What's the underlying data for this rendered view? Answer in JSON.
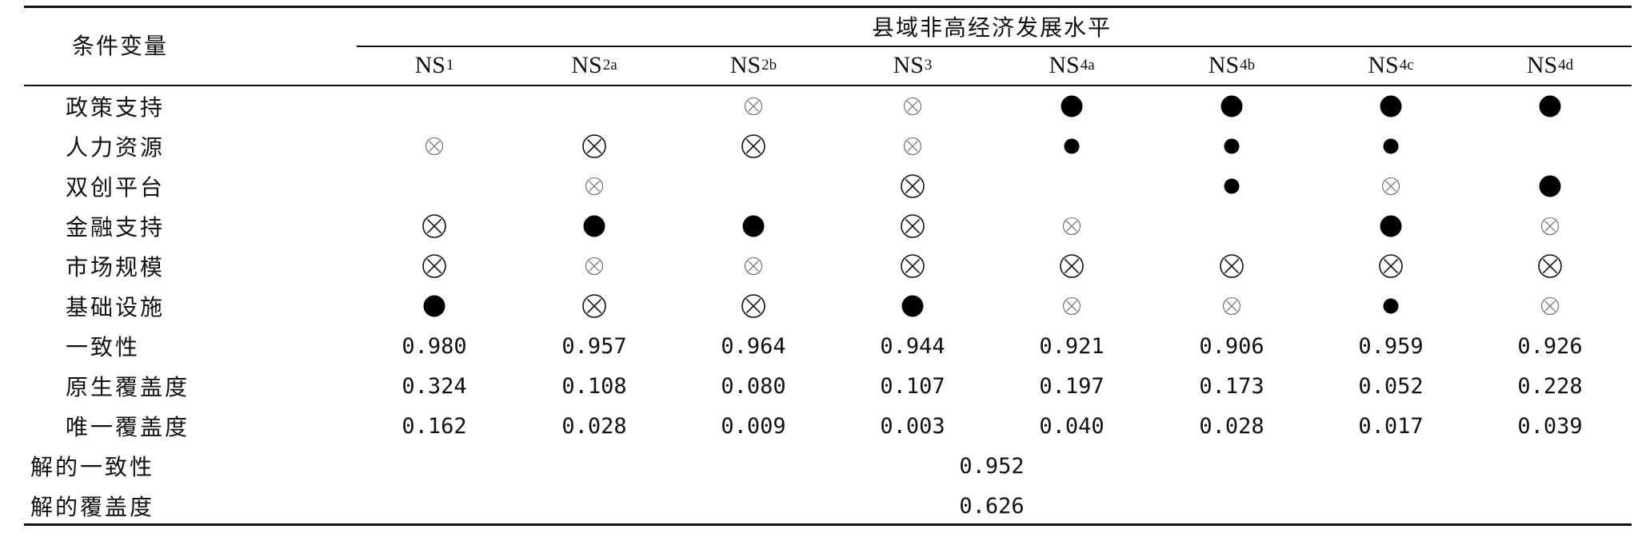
{
  "table": {
    "corner_header": "条件变量",
    "group_header": "县域非高经济发展水平",
    "columns": [
      {
        "base": "NS",
        "sub": "1"
      },
      {
        "base": "NS",
        "sub": "2a"
      },
      {
        "base": "NS",
        "sub": "2b"
      },
      {
        "base": "NS",
        "sub": "3"
      },
      {
        "base": "NS",
        "sub": "4a"
      },
      {
        "base": "NS",
        "sub": "4b"
      },
      {
        "base": "NS",
        "sub": "4c"
      },
      {
        "base": "NS",
        "sub": "4d"
      }
    ],
    "legend_symbols": {
      "big_filled": "core condition present",
      "small_filled": "peripheral condition present",
      "big_crossed": "core condition absent",
      "small_crossed": "peripheral condition absent",
      "empty": "irrelevant"
    },
    "condition_rows": [
      {
        "label": "政策支持",
        "cells": [
          "",
          "",
          "small_crossed",
          "small_crossed",
          "big_filled",
          "big_filled",
          "big_filled",
          "big_filled"
        ]
      },
      {
        "label": "人力资源",
        "cells": [
          "small_crossed",
          "big_crossed",
          "big_crossed",
          "small_crossed",
          "small_filled",
          "small_filled",
          "small_filled",
          ""
        ]
      },
      {
        "label": "双创平台",
        "cells": [
          "",
          "small_crossed",
          "",
          "big_crossed",
          "",
          "small_filled",
          "small_crossed",
          "big_filled"
        ]
      },
      {
        "label": "金融支持",
        "cells": [
          "big_crossed",
          "big_filled",
          "big_filled",
          "big_crossed",
          "small_crossed",
          "",
          "big_filled",
          "small_crossed"
        ]
      },
      {
        "label": "市场规模",
        "cells": [
          "big_crossed",
          "small_crossed",
          "small_crossed",
          "big_crossed",
          "big_crossed",
          "big_crossed",
          "big_crossed",
          "big_crossed"
        ]
      },
      {
        "label": "基础设施",
        "cells": [
          "big_filled",
          "big_crossed",
          "big_crossed",
          "big_filled",
          "small_crossed",
          "small_crossed",
          "small_filled",
          "small_crossed"
        ]
      }
    ],
    "metric_rows": [
      {
        "label": "一致性",
        "values": [
          "0.980",
          "0.957",
          "0.964",
          "0.944",
          "0.921",
          "0.906",
          "0.959",
          "0.926"
        ]
      },
      {
        "label": "原生覆盖度",
        "values": [
          "0.324",
          "0.108",
          "0.080",
          "0.107",
          "0.197",
          "0.173",
          "0.052",
          "0.228"
        ]
      },
      {
        "label": "唯一覆盖度",
        "values": [
          "0.162",
          "0.028",
          "0.009",
          "0.003",
          "0.040",
          "0.028",
          "0.017",
          "0.039"
        ]
      }
    ],
    "solution_rows": [
      {
        "label": "解的一致性",
        "value": "0.952"
      },
      {
        "label": "解的覆盖度",
        "value": "0.626"
      }
    ]
  }
}
